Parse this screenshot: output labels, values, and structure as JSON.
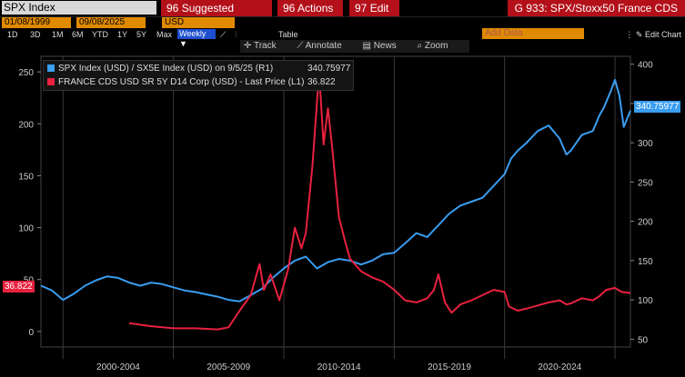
{
  "header": {
    "ticker": "SPX Index",
    "suggested": "Suggested Charts",
    "actions": "Actions",
    "edit": "Edit",
    "title": "G 933: SPX/Stoxx50 France CDS"
  },
  "controls": {
    "start_date": "01/08/1999",
    "end_date": "09/08/2025",
    "currency": "USD",
    "periods": [
      "1D",
      "3D",
      "1M",
      "6M",
      "YTD",
      "1Y",
      "5Y",
      "Max"
    ],
    "frequency": "Weekly",
    "table": "Table",
    "add_data": "Add Data",
    "edit_chart": "Edit Chart",
    "toolbar": [
      "Track",
      "Annotate",
      "News",
      "Zoom"
    ]
  },
  "colors": {
    "blue": "#3a9df0",
    "red": "#e8213f",
    "accent": "#b3101a",
    "orange": "#e08a00"
  },
  "chart_data": {
    "type": "line",
    "title": "SPX/Stoxx50 France CDS",
    "x_labels": [
      "2000-2004",
      "2005-2009",
      "2010-2014",
      "2015-2019",
      "2020-2024"
    ],
    "x_range": [
      1999.0,
      2025.7
    ],
    "left_axis": {
      "ticks": [
        0,
        50,
        100,
        150,
        200,
        250
      ],
      "range": [
        -15,
        265
      ]
    },
    "right_axis": {
      "ticks": [
        50,
        100,
        150,
        200,
        250,
        300,
        350,
        400
      ],
      "range": [
        40,
        410
      ]
    },
    "series": [
      {
        "name": "SPX Index (USD) / SX5E Index (USD) on 9/5/25 (R1)",
        "axis": "right",
        "color": "#3a9df0",
        "last_value": "340.75977",
        "x": [
          1999.0,
          1999.5,
          2000.0,
          2000.5,
          2001.0,
          2001.5,
          2002.0,
          2002.5,
          2003.0,
          2003.5,
          2004.0,
          2004.5,
          2005.0,
          2005.5,
          2006.0,
          2006.5,
          2007.0,
          2007.5,
          2008.0,
          2008.5,
          2009.0,
          2009.5,
          2010.0,
          2010.5,
          2011.0,
          2011.5,
          2012.0,
          2012.5,
          2013.0,
          2013.5,
          2014.0,
          2014.5,
          2015.0,
          2015.5,
          2016.0,
          2016.5,
          2017.0,
          2017.5,
          2018.0,
          2018.5,
          2019.0,
          2019.5,
          2020.0,
          2020.3,
          2020.6,
          2021.0,
          2021.5,
          2022.0,
          2022.5,
          2022.8,
          2023.0,
          2023.5,
          2024.0,
          2024.3,
          2024.5,
          2024.8,
          2025.0,
          2025.2,
          2025.4,
          2025.7
        ],
        "values": [
          118,
          112,
          100,
          108,
          118,
          125,
          130,
          128,
          122,
          118,
          122,
          120,
          116,
          112,
          110,
          107,
          104,
          100,
          98,
          106,
          114,
          128,
          140,
          150,
          155,
          140,
          148,
          152,
          150,
          145,
          150,
          158,
          160,
          172,
          185,
          180,
          195,
          210,
          220,
          225,
          230,
          245,
          260,
          280,
          290,
          300,
          315,
          322,
          305,
          285,
          290,
          310,
          315,
          335,
          345,
          365,
          380,
          360,
          320,
          341
        ]
      },
      {
        "name": "FRANCE CDS USD SR 5Y D14 Corp (USD) - Last Price (L1)",
        "axis": "left",
        "color": "#e8213f",
        "last_value": "36.822",
        "x": [
          2003.0,
          2004.0,
          2005.0,
          2006.0,
          2007.0,
          2007.5,
          2008.0,
          2008.5,
          2008.9,
          2009.1,
          2009.4,
          2009.8,
          2010.2,
          2010.5,
          2010.8,
          2011.0,
          2011.3,
          2011.6,
          2011.8,
          2012.0,
          2012.2,
          2012.5,
          2012.8,
          2013.0,
          2013.5,
          2014.0,
          2014.5,
          2015.0,
          2015.5,
          2016.0,
          2016.5,
          2016.8,
          2017.0,
          2017.3,
          2017.6,
          2018.0,
          2018.5,
          2019.0,
          2019.5,
          2020.0,
          2020.2,
          2020.6,
          2021.0,
          2021.5,
          2022.0,
          2022.5,
          2022.8,
          2023.0,
          2023.5,
          2024.0,
          2024.3,
          2024.6,
          2025.0,
          2025.3,
          2025.7
        ],
        "values": [
          8,
          5,
          3,
          3,
          2,
          4,
          20,
          35,
          65,
          40,
          55,
          30,
          60,
          100,
          80,
          95,
          160,
          250,
          180,
          215,
          175,
          110,
          85,
          70,
          58,
          52,
          48,
          40,
          30,
          28,
          32,
          40,
          55,
          28,
          18,
          26,
          30,
          35,
          40,
          38,
          24,
          20,
          22,
          25,
          28,
          30,
          26,
          27,
          32,
          30,
          34,
          40,
          42,
          38,
          37
        ]
      }
    ]
  }
}
